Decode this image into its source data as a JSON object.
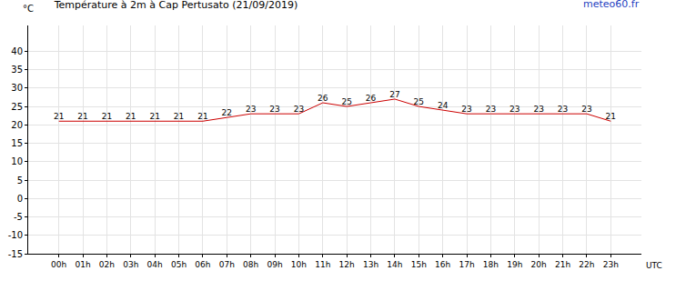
{
  "chart_data": {
    "type": "line",
    "title": "Température à 2m à Cap Pertusato (21/09/2019)",
    "source": "meteo60.fr",
    "y_label": "°C",
    "x_label": "UTC",
    "categories": [
      "00h",
      "01h",
      "02h",
      "03h",
      "04h",
      "05h",
      "06h",
      "07h",
      "08h",
      "09h",
      "10h",
      "11h",
      "12h",
      "13h",
      "14h",
      "15h",
      "16h",
      "17h",
      "18h",
      "19h",
      "20h",
      "21h",
      "22h",
      "23h"
    ],
    "values": [
      21,
      21,
      21,
      21,
      21,
      21,
      21,
      22,
      23,
      23,
      23,
      26,
      25,
      26,
      27,
      25,
      24,
      23,
      23,
      23,
      23,
      23,
      23,
      21
    ],
    "color": "#cc0000",
    "ylim": [
      -15,
      47
    ],
    "yticks": [
      -15,
      -10,
      -5,
      0,
      5,
      10,
      15,
      20,
      25,
      30,
      35,
      40
    ],
    "grid": true,
    "data_labels": true
  }
}
